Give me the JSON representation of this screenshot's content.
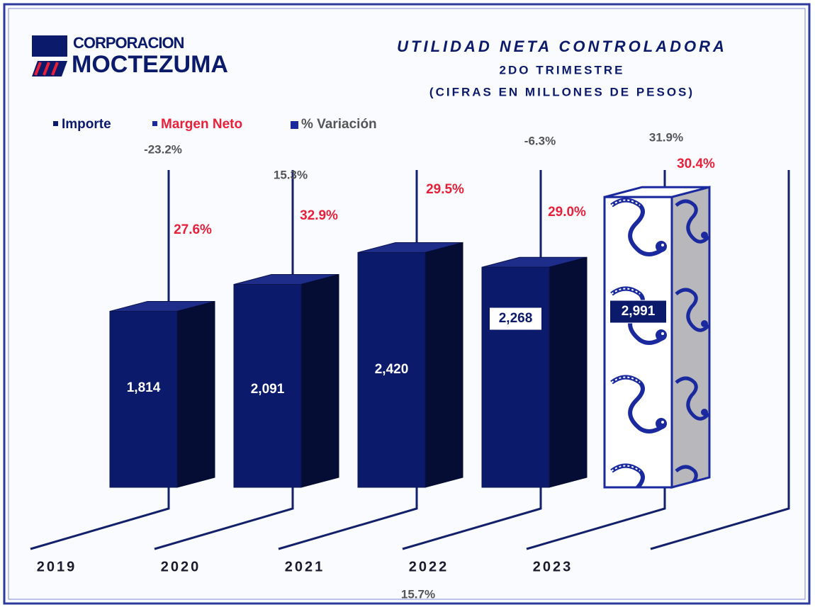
{
  "logo": {
    "line1": "CORPORACION",
    "line2": "MOCTEZUMA"
  },
  "chart_data": {
    "type": "bar3d",
    "title": "UTILIDAD NETA CONTROLADORA",
    "subtitle": "2DO TRIMESTRE",
    "note": "(CIFRAS EN MILLONES DE PESOS)",
    "categories": [
      "2019",
      "2020",
      "2021",
      "2022",
      "2023"
    ],
    "series": [
      {
        "name": "Importe",
        "color": "#0c1a6b",
        "values": [
          1814,
          2091,
          2420,
          2268,
          2991
        ],
        "value_labels": [
          "1,814",
          "2,091",
          "2,420",
          "2,268",
          "2,991"
        ]
      },
      {
        "name": "Margen Neto",
        "color": "#e8203a",
        "values": [
          27.6,
          32.9,
          29.5,
          29.0,
          30.4
        ],
        "value_labels": [
          "27.6%",
          "32.9%",
          "29.5%",
          "29.0%",
          "30.4%"
        ]
      },
      {
        "name": "% Variación",
        "color": "#555555",
        "values": [
          -23.2,
          15.3,
          15.7,
          -6.3,
          31.9
        ],
        "value_labels": [
          "-23.2%",
          "15.3%",
          "15.7%",
          "-6.3%",
          "31.9%"
        ]
      }
    ]
  }
}
